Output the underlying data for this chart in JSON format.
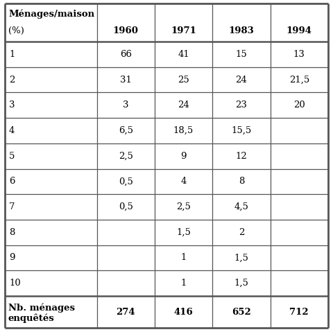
{
  "header_col_line1": "Ménages/maison",
  "header_col_line2": "(%)",
  "columns": [
    "1960",
    "1971",
    "1983",
    "1994"
  ],
  "rows": [
    {
      "label": "1",
      "values": [
        "66",
        "41",
        "15",
        "13"
      ]
    },
    {
      "label": "2",
      "values": [
        "31",
        "25",
        "24",
        "21,5"
      ]
    },
    {
      "label": "3",
      "values": [
        "3",
        "24",
        "23",
        "20"
      ]
    },
    {
      "label": "4",
      "values": [
        "6,5",
        "18,5",
        "15,5",
        ""
      ]
    },
    {
      "label": "5",
      "values": [
        "2,5",
        "9",
        "12",
        ""
      ]
    },
    {
      "label": "6",
      "values": [
        "0,5",
        "4",
        "8",
        ""
      ]
    },
    {
      "label": "7",
      "values": [
        "0,5",
        "2,5",
        "4,5",
        ""
      ]
    },
    {
      "label": "8",
      "values": [
        "",
        "1,5",
        "2",
        ""
      ]
    },
    {
      "label": "9",
      "values": [
        "",
        "1",
        "1,5",
        ""
      ]
    },
    {
      "label": "10",
      "values": [
        "",
        "1",
        "1,5",
        ""
      ]
    }
  ],
  "footer_col_line1": "Nb. ménages",
  "footer_col_line2": "enquêtés",
  "footer_values": [
    "274",
    "416",
    "652",
    "712"
  ],
  "bg_color": "#ffffff",
  "text_color": "#000000",
  "line_color": "#555555",
  "cell_fontsize": 9.5,
  "header_fontsize": 9.5
}
